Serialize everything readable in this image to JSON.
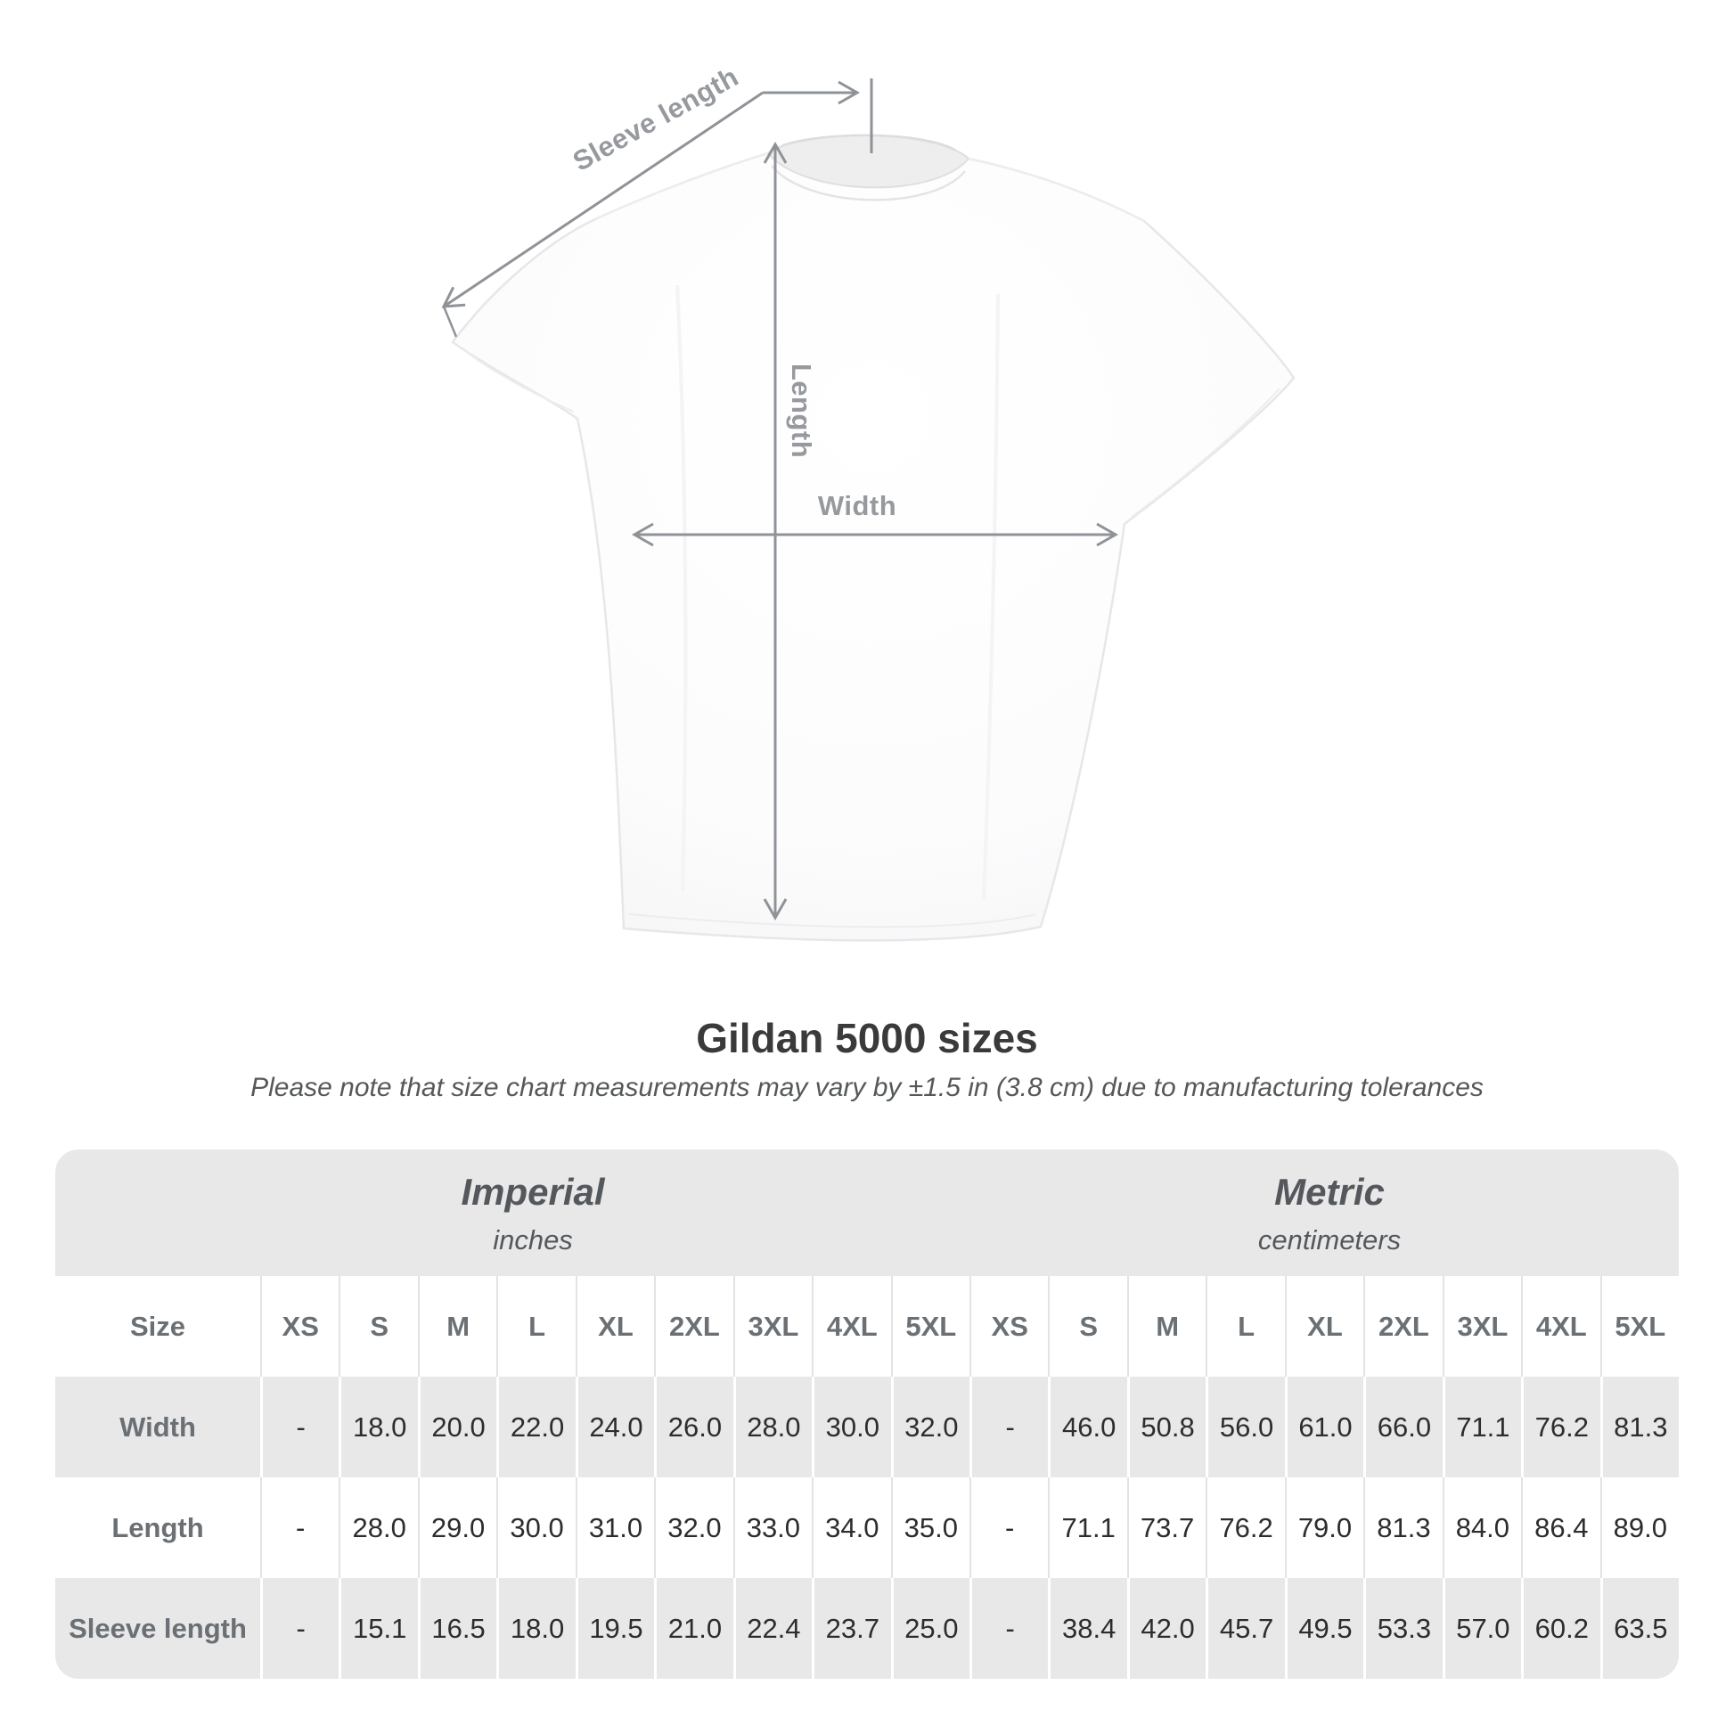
{
  "diagram": {
    "labels": {
      "sleeve_length": "Sleeve length",
      "length": "Length",
      "width": "Width"
    },
    "line_color": "#8f9397",
    "label_color": "#96999d",
    "shirt_color": "#fcfcfd"
  },
  "title": "Gildan 5000 sizes",
  "subtitle": "Please note that size chart measurements may vary by ±1.5 in (3.8 cm) due to manufacturing tolerances",
  "table": {
    "size_col_header": "Size",
    "unit_groups": [
      {
        "name": "Imperial",
        "unit": "inches"
      },
      {
        "name": "Metric",
        "unit": "centimeters"
      }
    ],
    "size_headers_imperial": [
      "XS",
      "S",
      "M",
      "L",
      "XL",
      "2XL",
      "3XL",
      "4XL",
      "5XL"
    ],
    "size_headers_metric": [
      "XS",
      "S",
      "M",
      "L",
      "XL",
      "2XL",
      "3XL",
      "4XL",
      "5XL"
    ],
    "rows": [
      {
        "label": "Width",
        "imperial": [
          "-",
          "18.0",
          "20.0",
          "22.0",
          "24.0",
          "26.0",
          "28.0",
          "30.0",
          "32.0"
        ],
        "metric": [
          "-",
          "46.0",
          "50.8",
          "56.0",
          "61.0",
          "66.0",
          "71.1",
          "76.2",
          "81.3"
        ]
      },
      {
        "label": "Length",
        "imperial": [
          "-",
          "28.0",
          "29.0",
          "30.0",
          "31.0",
          "32.0",
          "33.0",
          "34.0",
          "35.0"
        ],
        "metric": [
          "-",
          "71.1",
          "73.7",
          "76.2",
          "79.0",
          "81.3",
          "84.0",
          "86.4",
          "89.0"
        ]
      },
      {
        "label": "Sleeve length",
        "imperial": [
          "-",
          "15.1",
          "16.5",
          "18.0",
          "19.5",
          "21.0",
          "22.4",
          "23.7",
          "25.0"
        ],
        "metric": [
          "-",
          "38.4",
          "42.0",
          "45.7",
          "49.5",
          "53.3",
          "57.0",
          "60.2",
          "63.5"
        ]
      }
    ]
  },
  "chart_data": {
    "type": "table",
    "title": "Gildan 5000 sizes",
    "note": "Please note that size chart measurements may vary by ±1.5 in (3.8 cm) due to manufacturing tolerances",
    "sizes": [
      "XS",
      "S",
      "M",
      "L",
      "XL",
      "2XL",
      "3XL",
      "4XL",
      "5XL"
    ],
    "unit_groups": [
      {
        "name": "Imperial",
        "unit": "inches"
      },
      {
        "name": "Metric",
        "unit": "centimeters"
      }
    ],
    "rows": [
      {
        "measurement": "Width",
        "imperial_in": [
          null,
          18.0,
          20.0,
          22.0,
          24.0,
          26.0,
          28.0,
          30.0,
          32.0
        ],
        "metric_cm": [
          null,
          46.0,
          50.8,
          56.0,
          61.0,
          66.0,
          71.1,
          76.2,
          81.3
        ]
      },
      {
        "measurement": "Length",
        "imperial_in": [
          null,
          28.0,
          29.0,
          30.0,
          31.0,
          32.0,
          33.0,
          34.0,
          35.0
        ],
        "metric_cm": [
          null,
          71.1,
          73.7,
          76.2,
          79.0,
          81.3,
          84.0,
          86.4,
          89.0
        ]
      },
      {
        "measurement": "Sleeve length",
        "imperial_in": [
          null,
          15.1,
          16.5,
          18.0,
          19.5,
          21.0,
          22.4,
          23.7,
          25.0
        ],
        "metric_cm": [
          null,
          38.4,
          42.0,
          45.7,
          49.5,
          53.3,
          57.0,
          60.2,
          63.5
        ]
      }
    ]
  }
}
